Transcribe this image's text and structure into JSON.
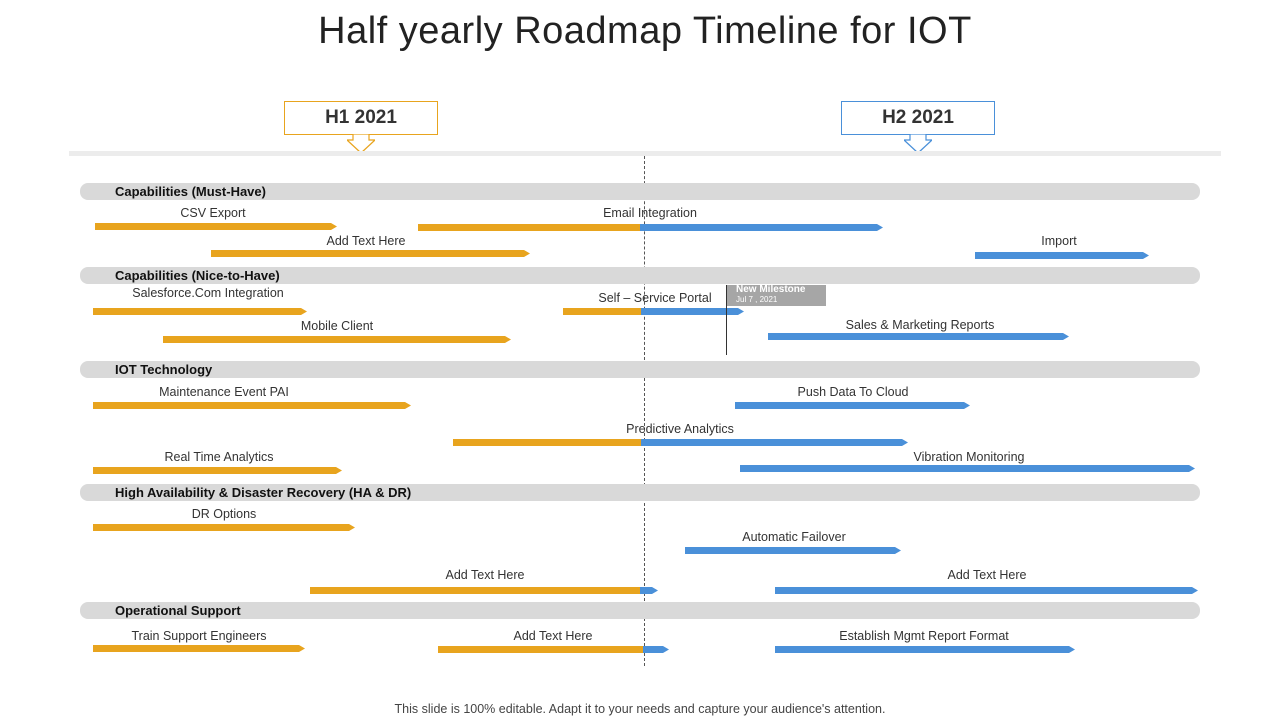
{
  "title": "Half yearly Roadmap Timeline for IOT",
  "halves": [
    {
      "label": "H1 2021",
      "color": "#e8a41e"
    },
    {
      "label": "H2 2021",
      "color": "#4a90d9"
    }
  ],
  "colors": {
    "h1": "#e8a41e",
    "h2": "#4a90d9",
    "band": "#d9d9d9"
  },
  "sections": [
    {
      "label": "Capabilities (Must-Have)"
    },
    {
      "label": "Capabilities (Nice-to-Have)"
    },
    {
      "label": "IOT Technology"
    },
    {
      "label": "High Availability & Disaster Recovery (HA & DR)"
    },
    {
      "label": "Operational Support"
    }
  ],
  "tasks": [
    {
      "label": "CSV Export"
    },
    {
      "label": "Email Integration"
    },
    {
      "label": "Add Text Here"
    },
    {
      "label": "Import"
    },
    {
      "label": "Salesforce.Com Integration"
    },
    {
      "label": "Self – Service Portal"
    },
    {
      "label": "Mobile Client"
    },
    {
      "label": "Sales & Marketing Reports"
    },
    {
      "label": "Maintenance Event PAI"
    },
    {
      "label": "Push Data To Cloud"
    },
    {
      "label": "Predictive Analytics"
    },
    {
      "label": "Real Time Analytics"
    },
    {
      "label": "Vibration Monitoring"
    },
    {
      "label": "DR Options"
    },
    {
      "label": "Automatic Failover"
    },
    {
      "label": "Add Text Here"
    },
    {
      "label": "Add Text Here"
    },
    {
      "label": "Train Support Engineers"
    },
    {
      "label": "Add Text Here"
    },
    {
      "label": "Establish Mgmt Report Format"
    }
  ],
  "milestone": {
    "title": "New Milestone",
    "date": "Jul 7 , 2021"
  },
  "footer": "This slide is 100% editable. Adapt it to your needs and capture your audience's attention."
}
